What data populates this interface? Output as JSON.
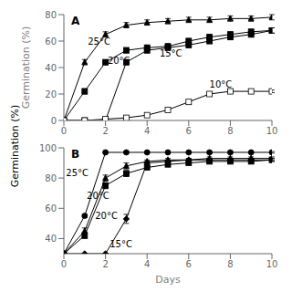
{
  "ylabel": "Germination (%)",
  "chart_data": [
    {
      "type": "line",
      "title": "A",
      "ylabel": "Germination (%)",
      "x": [
        0,
        1,
        2,
        3,
        4,
        5,
        6,
        7,
        8,
        9,
        10
      ],
      "xlim": [
        0,
        10
      ],
      "xticks": [
        0,
        2,
        4,
        6,
        8,
        10
      ],
      "ylim": [
        0,
        80
      ],
      "yticks": [
        0,
        20,
        40,
        60,
        80
      ],
      "series": [
        {
          "marker": "triangle",
          "color": "black",
          "values": [
            0,
            44,
            65,
            72,
            74,
            75,
            76,
            76,
            77,
            77,
            78
          ],
          "errors": [
            0,
            2,
            2,
            2,
            2,
            2,
            2,
            2,
            2,
            2,
            2
          ]
        },
        {
          "marker": "square",
          "color": "black",
          "values": [
            0,
            22,
            44,
            53,
            55,
            56,
            60,
            63,
            65,
            67,
            68
          ],
          "errors": [
            0,
            2,
            2,
            2,
            2,
            2,
            2,
            2,
            2,
            2,
            2
          ]
        },
        {
          "marker": "square",
          "color": "black",
          "values": [
            0,
            0,
            0,
            44,
            53,
            55,
            57,
            60,
            63,
            65,
            68
          ],
          "errors": [
            0,
            0,
            0,
            2,
            2,
            2,
            2,
            2,
            2,
            2,
            2
          ]
        },
        {
          "marker": "open_square",
          "color": "black",
          "values": [
            0,
            0,
            1,
            2,
            4,
            8,
            14,
            20,
            22,
            22,
            22
          ],
          "errors": [
            0,
            0,
            0,
            0,
            0.5,
            0.5,
            1,
            1,
            1,
            1,
            1
          ]
        }
      ],
      "annotations": [
        {
          "text": "25°C",
          "x": 1.15,
          "y": 57
        },
        {
          "text": "20°C",
          "x": 2.1,
          "y": 43
        },
        {
          "text": "15°C",
          "x": 4.6,
          "y": 48
        },
        {
          "text": "10°C",
          "x": 7.0,
          "y": 25
        }
      ]
    },
    {
      "type": "line",
      "title": "B",
      "xlabel": "Days",
      "x": [
        0,
        1,
        2,
        3,
        4,
        5,
        6,
        7,
        8,
        9,
        10
      ],
      "xlim": [
        0,
        10
      ],
      "xticks": [
        0,
        2,
        4,
        6,
        8,
        10
      ],
      "ylim": [
        30,
        100
      ],
      "yticks": [
        40,
        60,
        80,
        100
      ],
      "series": [
        {
          "marker": "circle",
          "color": "black",
          "values": [
            30,
            55,
            97,
            97,
            97,
            97,
            97,
            97,
            97,
            97,
            97
          ],
          "errors": [
            0,
            1,
            0.5,
            0.5,
            0.5,
            0.5,
            0.5,
            0.5,
            0.5,
            0.5,
            0.5
          ]
        },
        {
          "marker": "triangle",
          "color": "black",
          "values": [
            30,
            45,
            80,
            88,
            91,
            92,
            92,
            93,
            93,
            93,
            93
          ],
          "errors": [
            0,
            2,
            2,
            2,
            1,
            1,
            1,
            1,
            1,
            1,
            1
          ]
        },
        {
          "marker": "square",
          "color": "black",
          "values": [
            30,
            42,
            75,
            83,
            87,
            89,
            90,
            91,
            91,
            91,
            92
          ],
          "errors": [
            0,
            2,
            2,
            2,
            1,
            1,
            1,
            1,
            1,
            1,
            1
          ]
        },
        {
          "marker": "diamond",
          "color": "black",
          "values": [
            30,
            30,
            30,
            53,
            90,
            91,
            92,
            92,
            92,
            92,
            92
          ],
          "errors": [
            0,
            0,
            0,
            3,
            1,
            1,
            1,
            1,
            1,
            1,
            1
          ]
        }
      ],
      "annotations": [
        {
          "text": "25°C",
          "x": 0.1,
          "y": 81
        },
        {
          "text": "20°C",
          "x": 1.1,
          "y": 66
        },
        {
          "text": "20°C",
          "x": 1.5,
          "y": 53
        },
        {
          "text": "15°C",
          "x": 2.2,
          "y": 34
        }
      ]
    }
  ]
}
